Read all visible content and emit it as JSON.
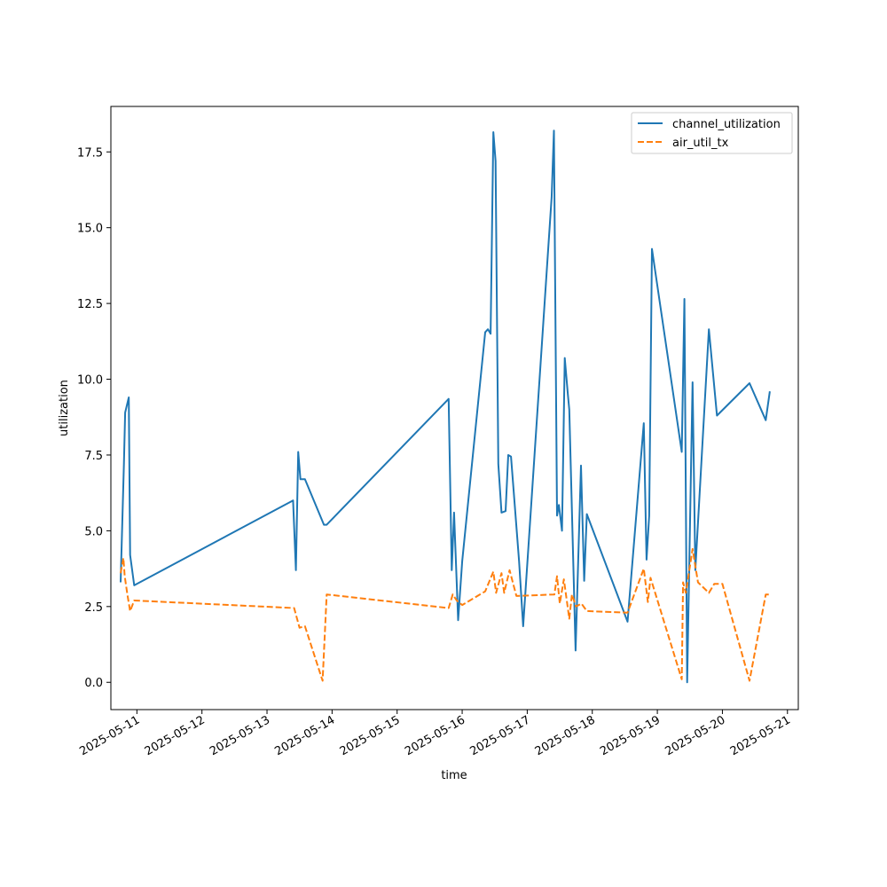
{
  "chart_data": {
    "type": "line",
    "title": "",
    "xlabel": "time",
    "ylabel": "utilization",
    "x_type": "time",
    "xlim": [
      "2025-05-10 14:24",
      "2025-05-21 04:00"
    ],
    "ylim": [
      -0.9,
      19.0
    ],
    "x_ticks": [
      "2025-05-11",
      "2025-05-12",
      "2025-05-13",
      "2025-05-14",
      "2025-05-15",
      "2025-05-16",
      "2025-05-17",
      "2025-05-18",
      "2025-05-19",
      "2025-05-20",
      "2025-05-21"
    ],
    "y_ticks": [
      "0.0",
      "2.5",
      "5.0",
      "7.5",
      "10.0",
      "12.5",
      "15.0",
      "17.5"
    ],
    "y_tick_values": [
      0,
      2.5,
      5.0,
      7.5,
      10.0,
      12.5,
      15.0,
      17.5
    ],
    "grid": false,
    "legend_position": "top-right",
    "colors": {
      "channel_utilization": "#1f77b4",
      "air_util_tx": "#ff7f0e"
    },
    "series": [
      {
        "name": "channel_utilization",
        "style": "solid",
        "points": [
          [
            "2025-05-10 18:00",
            3.3
          ],
          [
            "2025-05-10 19:12",
            7.2
          ],
          [
            "2025-05-10 19:40",
            8.9
          ],
          [
            "2025-05-10 21:00",
            9.4
          ],
          [
            "2025-05-10 21:30",
            4.2
          ],
          [
            "2025-05-10 23:00",
            3.2
          ],
          [
            "2025-05-13 09:36",
            6.0
          ],
          [
            "2025-05-13 10:40",
            3.7
          ],
          [
            "2025-05-13 11:30",
            7.6
          ],
          [
            "2025-05-13 12:20",
            6.7
          ],
          [
            "2025-05-13 14:00",
            6.7
          ],
          [
            "2025-05-13 21:00",
            5.2
          ],
          [
            "2025-05-13 22:00",
            5.2
          ],
          [
            "2025-05-15 19:00",
            9.35
          ],
          [
            "2025-05-15 20:10",
            3.7
          ],
          [
            "2025-05-15 21:00",
            5.6
          ],
          [
            "2025-05-15 22:30",
            2.05
          ],
          [
            "2025-05-16 00:00",
            4.0
          ],
          [
            "2025-05-16 08:30",
            11.55
          ],
          [
            "2025-05-16 09:30",
            11.65
          ],
          [
            "2025-05-16 10:30",
            11.5
          ],
          [
            "2025-05-16 11:30",
            18.15
          ],
          [
            "2025-05-16 12:20",
            17.2
          ],
          [
            "2025-05-16 13:20",
            7.2
          ],
          [
            "2025-05-16 14:30",
            5.6
          ],
          [
            "2025-05-16 16:00",
            5.65
          ],
          [
            "2025-05-16 17:00",
            7.5
          ],
          [
            "2025-05-16 18:00",
            7.45
          ],
          [
            "2025-05-16 21:00",
            4.0
          ],
          [
            "2025-05-16 22:30",
            1.85
          ],
          [
            "2025-05-17 09:00",
            16.0
          ],
          [
            "2025-05-17 09:50",
            18.2
          ],
          [
            "2025-05-17 11:00",
            5.5
          ],
          [
            "2025-05-17 11:40",
            5.85
          ],
          [
            "2025-05-17 12:50",
            5.0
          ],
          [
            "2025-05-17 13:50",
            10.7
          ],
          [
            "2025-05-17 15:00",
            9.5
          ],
          [
            "2025-05-17 15:30",
            9.0
          ],
          [
            "2025-05-17 17:50",
            1.05
          ],
          [
            "2025-05-17 19:50",
            7.15
          ],
          [
            "2025-05-17 21:00",
            3.35
          ],
          [
            "2025-05-17 22:00",
            5.55
          ],
          [
            "2025-05-18 13:00",
            2.0
          ],
          [
            "2025-05-18 19:00",
            8.55
          ],
          [
            "2025-05-18 20:00",
            4.05
          ],
          [
            "2025-05-18 21:00",
            5.5
          ],
          [
            "2025-05-18 22:00",
            14.3
          ],
          [
            "2025-05-19 09:00",
            7.6
          ],
          [
            "2025-05-19 10:00",
            12.65
          ],
          [
            "2025-05-19 11:00",
            0.0
          ],
          [
            "2025-05-19 13:00",
            9.9
          ],
          [
            "2025-05-19 14:00",
            3.7
          ],
          [
            "2025-05-19 19:00",
            11.65
          ],
          [
            "2025-05-19 22:00",
            8.8
          ],
          [
            "2025-05-20 10:00",
            9.87
          ],
          [
            "2025-05-20 16:00",
            8.65
          ],
          [
            "2025-05-20 17:30",
            9.6
          ]
        ]
      },
      {
        "name": "air_util_tx",
        "style": "dashed",
        "points": [
          [
            "2025-05-10 18:00",
            3.6
          ],
          [
            "2025-05-10 19:00",
            4.1
          ],
          [
            "2025-05-10 19:30",
            3.5
          ],
          [
            "2025-05-10 20:30",
            2.9
          ],
          [
            "2025-05-10 21:30",
            2.35
          ],
          [
            "2025-05-10 23:00",
            2.7
          ],
          [
            "2025-05-13 10:00",
            2.45
          ],
          [
            "2025-05-13 12:00",
            1.8
          ],
          [
            "2025-05-13 14:00",
            1.85
          ],
          [
            "2025-05-13 20:30",
            0.05
          ],
          [
            "2025-05-13 22:00",
            2.9
          ],
          [
            "2025-05-15 19:00",
            2.45
          ],
          [
            "2025-05-15 20:30",
            2.9
          ],
          [
            "2025-05-15 22:00",
            2.7
          ],
          [
            "2025-05-16 00:00",
            2.55
          ],
          [
            "2025-05-16 08:30",
            3.0
          ],
          [
            "2025-05-16 11:30",
            3.65
          ],
          [
            "2025-05-16 12:30",
            2.95
          ],
          [
            "2025-05-16 14:30",
            3.6
          ],
          [
            "2025-05-16 15:30",
            2.95
          ],
          [
            "2025-05-16 17:30",
            3.7
          ],
          [
            "2025-05-16 20:00",
            2.85
          ],
          [
            "2025-05-17 10:00",
            2.9
          ],
          [
            "2025-05-17 11:00",
            3.5
          ],
          [
            "2025-05-17 12:00",
            2.6
          ],
          [
            "2025-05-17 13:30",
            3.4
          ],
          [
            "2025-05-17 15:30",
            2.1
          ],
          [
            "2025-05-17 16:30",
            2.9
          ],
          [
            "2025-05-17 18:00",
            2.5
          ],
          [
            "2025-05-17 20:00",
            2.6
          ],
          [
            "2025-05-17 22:00",
            2.35
          ],
          [
            "2025-05-18 13:00",
            2.3
          ],
          [
            "2025-05-18 19:00",
            3.75
          ],
          [
            "2025-05-18 20:30",
            2.65
          ],
          [
            "2025-05-18 21:30",
            3.45
          ],
          [
            "2025-05-19 09:00",
            0.1
          ],
          [
            "2025-05-19 09:30",
            3.3
          ],
          [
            "2025-05-19 10:30",
            2.95
          ],
          [
            "2025-05-19 13:00",
            4.4
          ],
          [
            "2025-05-19 15:00",
            3.3
          ],
          [
            "2025-05-19 19:00",
            2.95
          ],
          [
            "2025-05-19 21:00",
            3.25
          ],
          [
            "2025-05-20 00:00",
            3.25
          ],
          [
            "2025-05-20 10:00",
            0.05
          ],
          [
            "2025-05-20 16:00",
            2.9
          ],
          [
            "2025-05-20 17:30",
            2.9
          ]
        ]
      }
    ]
  }
}
